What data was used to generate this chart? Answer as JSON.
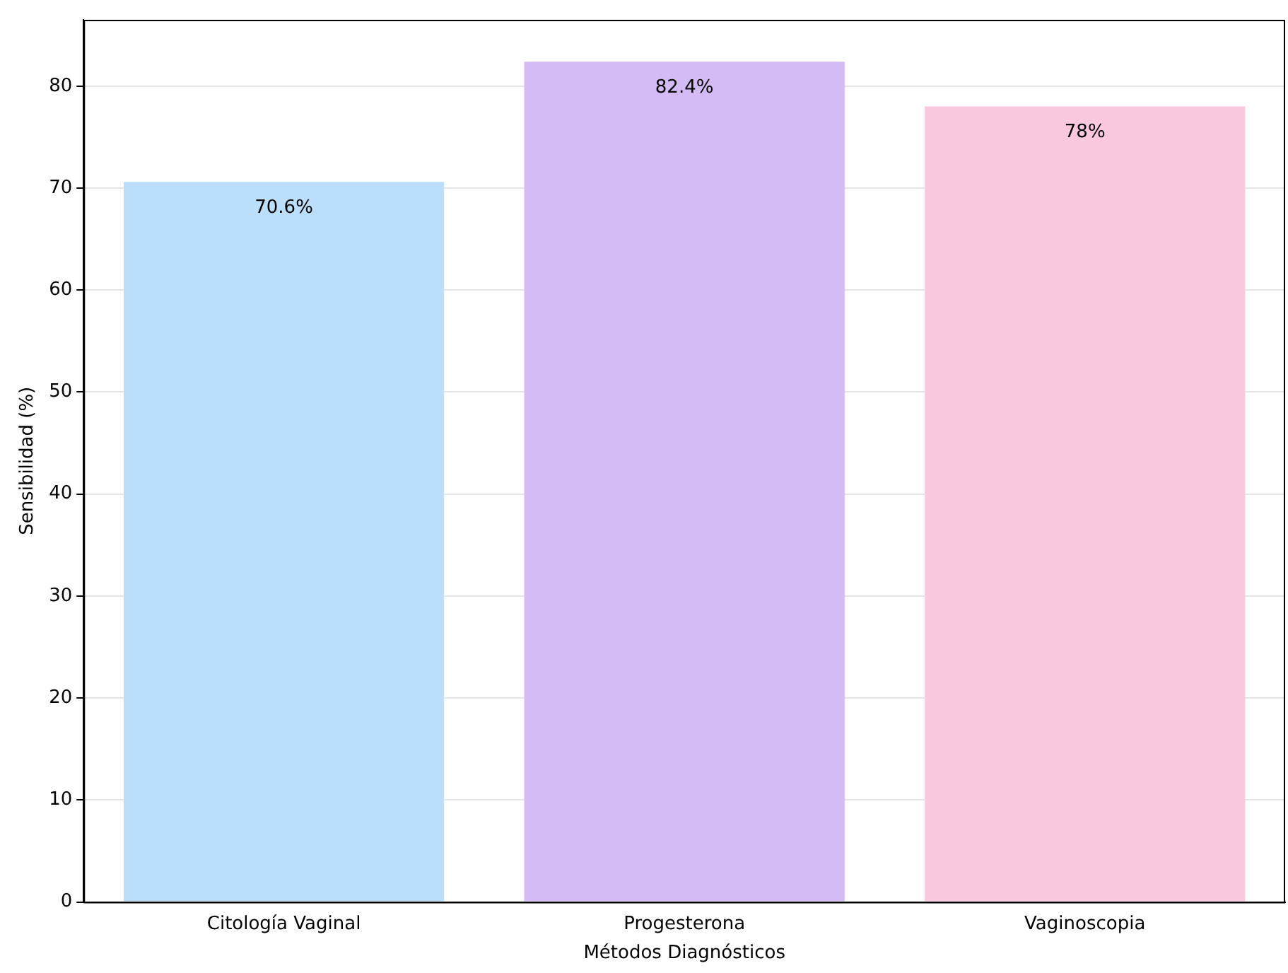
{
  "chart_data": {
    "type": "bar",
    "xlabel": "Métodos Diagnósticos",
    "ylabel": "Sensibilidad (%)",
    "categories": [
      "Citología Vaginal",
      "Progesterona",
      "Vaginoscopia"
    ],
    "values": [
      70.6,
      82.4,
      78
    ],
    "colors": [
      "#bbdefb",
      "#d4bbf5",
      "#fcc8e0"
    ],
    "value_labels": [
      "70.6%",
      "82.4%",
      "78%"
    ],
    "ylim": [
      0,
      86.5
    ],
    "yticks": [
      0,
      10,
      20,
      30,
      40,
      50,
      60,
      70,
      80
    ],
    "grid": "y",
    "legend": false
  }
}
